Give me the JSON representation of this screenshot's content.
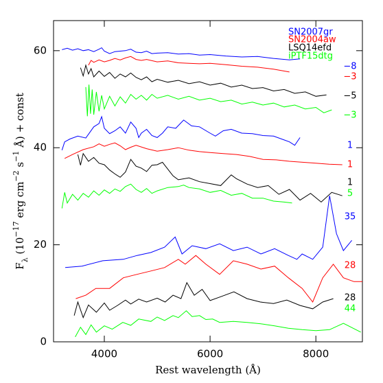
{
  "chart_data": {
    "type": "line",
    "xlabel": "Rest wavelength (Å)",
    "ylabel": [
      {
        "text": "F"
      },
      {
        "text": "λ",
        "pos": "sub"
      },
      {
        "text": " (10"
      },
      {
        "text": "−17",
        "pos": "super"
      },
      {
        "text": " erg cm"
      },
      {
        "text": "−2",
        "pos": "super"
      },
      {
        "text": " s"
      },
      {
        "text": "−1",
        "pos": "super"
      },
      {
        "text": " Å) + const"
      }
    ],
    "xlim": [
      3040,
      8880
    ],
    "ylim": [
      0,
      66.2
    ],
    "xticks": [
      4000,
      6000,
      8000
    ],
    "yticks": [
      0,
      20,
      40,
      60
    ],
    "series": [
      {
        "name": "SN2007gr",
        "color": "#0000ff",
        "label": "−8",
        "x": [
          3200,
          3300,
          3400,
          3500,
          3600,
          3700,
          3800,
          3900,
          3950,
          4000,
          4100,
          4200,
          4300,
          4400,
          4500,
          4600,
          4700,
          4800,
          4900,
          5000,
          5200,
          5400,
          5600,
          5800,
          6000,
          6300,
          6600,
          6900,
          7200,
          7500,
          7700
        ],
        "values": [
          60.2,
          60.5,
          60.1,
          60.4,
          60.0,
          60.2,
          59.8,
          60.3,
          60.6,
          59.9,
          59.4,
          59.8,
          59.9,
          60.0,
          60.3,
          59.7,
          59.6,
          59.9,
          59.4,
          59.5,
          59.6,
          59.3,
          59.4,
          59.1,
          59.2,
          58.9,
          58.7,
          58.8,
          58.4,
          58.1,
          58.3
        ]
      },
      {
        "name": "SN2004aw",
        "color": "#ff0000",
        "label": "−3",
        "x": [
          3700,
          3750,
          3800,
          3900,
          4000,
          4100,
          4200,
          4300,
          4400,
          4500,
          4600,
          4700,
          4800,
          5000,
          5200,
          5400,
          5600,
          5800,
          6000,
          6300,
          6600,
          6900,
          7200,
          7500
        ],
        "values": [
          57.0,
          58.0,
          57.6,
          58.1,
          57.7,
          58.0,
          58.4,
          58.1,
          58.5,
          58.8,
          58.2,
          58.0,
          58.2,
          57.7,
          57.9,
          57.5,
          57.4,
          57.3,
          57.4,
          57.1,
          56.8,
          56.6,
          56.2,
          55.6
        ]
      },
      {
        "name": "LSQ14efd",
        "color": "#000000",
        "label": "−5",
        "x": [
          3550,
          3600,
          3650,
          3700,
          3750,
          3800,
          3900,
          4000,
          4100,
          4200,
          4300,
          4400,
          4500,
          4600,
          4700,
          4800,
          4900,
          5000,
          5200,
          5400,
          5600,
          5800,
          6000,
          6200,
          6400,
          6600,
          6800,
          7000,
          7200,
          7400,
          7600,
          7800,
          8000,
          8200
        ],
        "values": [
          56.5,
          54.8,
          57.0,
          55.2,
          56.3,
          54.6,
          55.8,
          54.7,
          55.5,
          54.3,
          55.2,
          54.6,
          55.4,
          54.5,
          54.0,
          54.6,
          53.6,
          54.1,
          53.5,
          53.9,
          53.2,
          53.6,
          52.9,
          53.3,
          52.5,
          52.9,
          52.2,
          52.4,
          51.7,
          52.0,
          51.2,
          51.5,
          50.6,
          50.9
        ]
      },
      {
        "name": "iPTF15dtg",
        "color": "#00ff00",
        "label": "−3",
        "x": [
          3650,
          3680,
          3710,
          3740,
          3770,
          3800,
          3850,
          3900,
          3950,
          4000,
          4100,
          4200,
          4300,
          4400,
          4500,
          4600,
          4700,
          4800,
          4900,
          5000,
          5200,
          5400,
          5600,
          5800,
          6000,
          6200,
          6400,
          6600,
          6800,
          7000,
          7200,
          7400,
          7600,
          7800,
          8000,
          8150,
          8300
        ],
        "values": [
          52.5,
          46.5,
          53.0,
          47.0,
          52.0,
          46.8,
          51.5,
          47.5,
          50.8,
          48.0,
          50.6,
          48.6,
          50.5,
          49.2,
          51.0,
          50.0,
          50.8,
          49.8,
          51.0,
          50.2,
          50.8,
          50.0,
          50.6,
          49.8,
          50.2,
          49.5,
          49.8,
          49.0,
          49.4,
          48.8,
          49.2,
          48.4,
          48.8,
          48.0,
          48.3,
          47.2,
          47.8
        ]
      },
      {
        "color": "#0000ff",
        "label": "1",
        "x": [
          3200,
          3250,
          3350,
          3500,
          3650,
          3800,
          3900,
          3950,
          4000,
          4100,
          4200,
          4300,
          4400,
          4500,
          4600,
          4650,
          4700,
          4800,
          4900,
          5000,
          5100,
          5200,
          5350,
          5500,
          5650,
          5800,
          6000,
          6100,
          6250,
          6400,
          6600,
          6800,
          7000,
          7200,
          7400,
          7500,
          7600,
          7700
        ],
        "values": [
          39.5,
          41.2,
          41.8,
          42.4,
          42.0,
          44.3,
          45.0,
          46.4,
          44.0,
          42.9,
          43.5,
          44.3,
          43.0,
          45.3,
          44.0,
          42.1,
          43.0,
          43.8,
          42.5,
          42.1,
          43.0,
          44.3,
          44.0,
          45.7,
          44.5,
          44.3,
          43.0,
          42.4,
          43.5,
          43.8,
          43.0,
          42.9,
          42.5,
          42.4,
          41.6,
          41.2,
          40.5,
          42.1
        ]
      },
      {
        "color": "#ff0000",
        "label": "1",
        "x": [
          3250,
          3400,
          3600,
          3800,
          3900,
          4000,
          4100,
          4200,
          4300,
          4400,
          4500,
          4600,
          4800,
          5000,
          5200,
          5400,
          5600,
          5800,
          6000,
          6250,
          6500,
          6750,
          7000,
          7250,
          7500,
          7750,
          8000,
          8250,
          8500
        ],
        "values": [
          37.8,
          38.6,
          39.6,
          40.2,
          40.8,
          40.3,
          40.7,
          41.0,
          40.4,
          39.6,
          40.1,
          40.5,
          39.8,
          39.3,
          39.6,
          40.0,
          39.5,
          39.2,
          39.0,
          38.8,
          38.6,
          38.2,
          37.6,
          37.5,
          37.2,
          37.0,
          36.8,
          36.6,
          36.5
        ]
      },
      {
        "color": "#000000",
        "label": "1",
        "x": [
          3500,
          3550,
          3600,
          3700,
          3800,
          3900,
          4000,
          4100,
          4200,
          4300,
          4400,
          4500,
          4600,
          4700,
          4800,
          4900,
          5000,
          5100,
          5200,
          5300,
          5400,
          5600,
          5800,
          6000,
          6200,
          6400,
          6500,
          6700,
          6900,
          7100,
          7300,
          7500,
          7700,
          7900,
          8100,
          8300,
          8500
        ],
        "values": [
          38.6,
          36.4,
          38.8,
          37.2,
          38.0,
          36.8,
          36.5,
          35.4,
          34.6,
          33.9,
          35.0,
          37.6,
          36.2,
          35.8,
          35.1,
          36.4,
          36.5,
          37.0,
          35.6,
          34.2,
          33.4,
          33.8,
          33.0,
          32.6,
          32.2,
          34.4,
          33.6,
          32.5,
          31.8,
          32.2,
          30.4,
          31.4,
          29.2,
          30.6,
          28.8,
          30.8,
          30.1
        ]
      },
      {
        "color": "#00ff00",
        "label": "5",
        "x": [
          3200,
          3250,
          3300,
          3400,
          3500,
          3600,
          3700,
          3800,
          3900,
          4000,
          4100,
          4200,
          4300,
          4400,
          4500,
          4600,
          4700,
          4800,
          4900,
          5000,
          5200,
          5400,
          5500,
          5600,
          5800,
          6000,
          6200,
          6400,
          6600,
          6800,
          7000,
          7200,
          7400,
          7550
        ],
        "values": [
          27.5,
          30.8,
          28.6,
          30.4,
          29.2,
          30.6,
          29.8,
          31.1,
          30.2,
          31.3,
          30.6,
          31.5,
          31.0,
          32.0,
          32.5,
          31.4,
          30.8,
          31.6,
          30.6,
          31.1,
          31.8,
          32.0,
          32.3,
          31.8,
          31.5,
          30.8,
          31.2,
          30.2,
          30.6,
          29.6,
          29.6,
          29.0,
          28.8,
          28.6
        ]
      },
      {
        "color": "#0000ff",
        "label": "35",
        "x": [
          3260,
          3580,
          3970,
          4360,
          4620,
          4880,
          5140,
          5340,
          5470,
          5660,
          5920,
          6180,
          6440,
          6700,
          6960,
          7220,
          7480,
          7640,
          7740,
          7940,
          8130,
          8260,
          8390,
          8520,
          8680
        ],
        "values": [
          15.3,
          15.6,
          16.7,
          17.0,
          17.8,
          18.4,
          19.5,
          21.6,
          18.1,
          19.8,
          19.2,
          20.2,
          18.8,
          19.5,
          18.1,
          19.2,
          17.8,
          17.0,
          18.1,
          17.0,
          19.5,
          30.1,
          22.3,
          18.8,
          20.9
        ]
      },
      {
        "color": "#ff0000",
        "label": "28",
        "x": [
          3460,
          3650,
          3840,
          4100,
          4360,
          4620,
          4880,
          5140,
          5400,
          5530,
          5730,
          5920,
          6180,
          6440,
          6700,
          6960,
          7220,
          7480,
          7740,
          7940,
          8130,
          8330,
          8520,
          8720,
          8880
        ],
        "values": [
          8.9,
          9.6,
          11.0,
          11.0,
          13.2,
          13.9,
          14.6,
          15.3,
          17.0,
          16.0,
          17.8,
          16.0,
          13.9,
          16.7,
          16.0,
          15.0,
          15.6,
          13.2,
          11.0,
          8.2,
          13.2,
          16.0,
          13.2,
          12.4,
          12.4
        ]
      },
      {
        "color": "#000000",
        "label": "28",
        "x": [
          3430,
          3500,
          3600,
          3700,
          3850,
          4000,
          4100,
          4250,
          4400,
          4500,
          4650,
          4800,
          5000,
          5150,
          5300,
          5450,
          5560,
          5700,
          5850,
          6000,
          6200,
          6450,
          6700,
          6950,
          7200,
          7450,
          7700,
          7940,
          8130,
          8330
        ],
        "values": [
          5.4,
          8.2,
          5.0,
          7.6,
          6.1,
          8.0,
          6.5,
          7.5,
          8.6,
          7.8,
          8.8,
          8.2,
          9.0,
          8.2,
          9.6,
          8.9,
          12.2,
          9.6,
          10.8,
          8.5,
          9.3,
          10.3,
          8.9,
          8.2,
          7.9,
          8.6,
          7.5,
          6.8,
          8.2,
          8.9
        ]
      },
      {
        "color": "#00ff00",
        "label": "44",
        "x": [
          3450,
          3550,
          3650,
          3750,
          3850,
          4000,
          4150,
          4350,
          4500,
          4650,
          4880,
          5000,
          5140,
          5300,
          5400,
          5550,
          5660,
          5800,
          5920,
          6050,
          6180,
          6440,
          6700,
          6960,
          7220,
          7480,
          7740,
          8000,
          8260,
          8520,
          8850
        ],
        "values": [
          1.0,
          3.0,
          1.5,
          3.5,
          2.0,
          3.3,
          2.6,
          4.0,
          3.4,
          4.7,
          4.2,
          5.1,
          4.4,
          5.4,
          5.0,
          6.4,
          5.2,
          5.4,
          4.6,
          4.7,
          4.0,
          4.2,
          4.0,
          3.7,
          3.3,
          2.8,
          2.5,
          2.3,
          2.5,
          3.8,
          2.0
        ]
      }
    ]
  }
}
